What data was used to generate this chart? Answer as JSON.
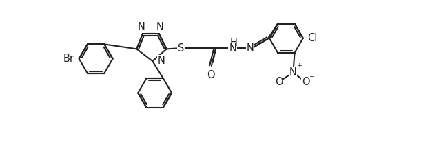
{
  "background_color": "#ffffff",
  "line_color": "#222222",
  "line_width": 1.5,
  "font_size": 10.5,
  "xlim": [
    -0.5,
    10.0
  ],
  "ylim": [
    -2.4,
    2.1
  ],
  "figsize": [
    6.4,
    2.2
  ],
  "dpi": 100
}
